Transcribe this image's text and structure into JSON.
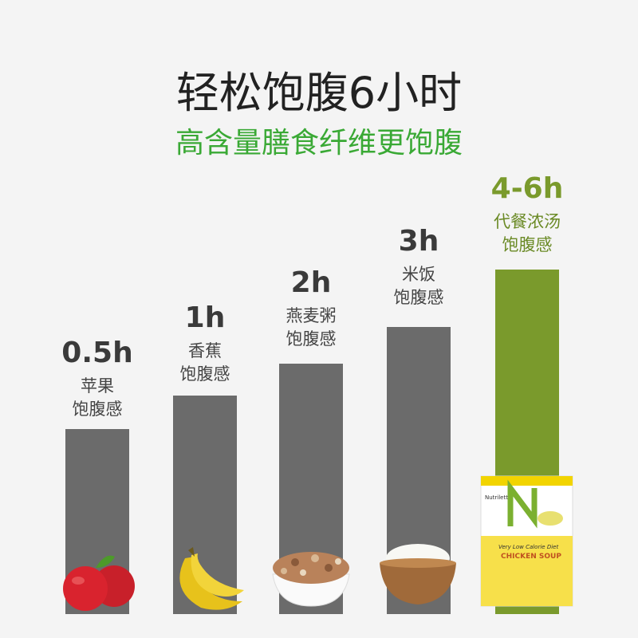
{
  "title": "轻松饱腹6小时",
  "subtitle": "高含量膳食纤维更饱腹",
  "items": [
    {
      "value": "0.5h",
      "lines": [
        "苹果",
        "饱腹感"
      ]
    },
    {
      "value": "1h",
      "lines": [
        "香蕉",
        "饱腹感"
      ]
    },
    {
      "value": "2h",
      "lines": [
        "燕麦粥",
        "饱腹感"
      ]
    },
    {
      "value": "3h",
      "lines": [
        "米饭",
        "饱腹感"
      ]
    },
    {
      "value": "4-6h",
      "lines": [
        "代餐浓汤",
        "饱腹感"
      ]
    }
  ],
  "product": {
    "brand": "Nutrilett",
    "line": "Very Low Calorie Diet",
    "flavor": "CHICKEN SOUP"
  }
}
